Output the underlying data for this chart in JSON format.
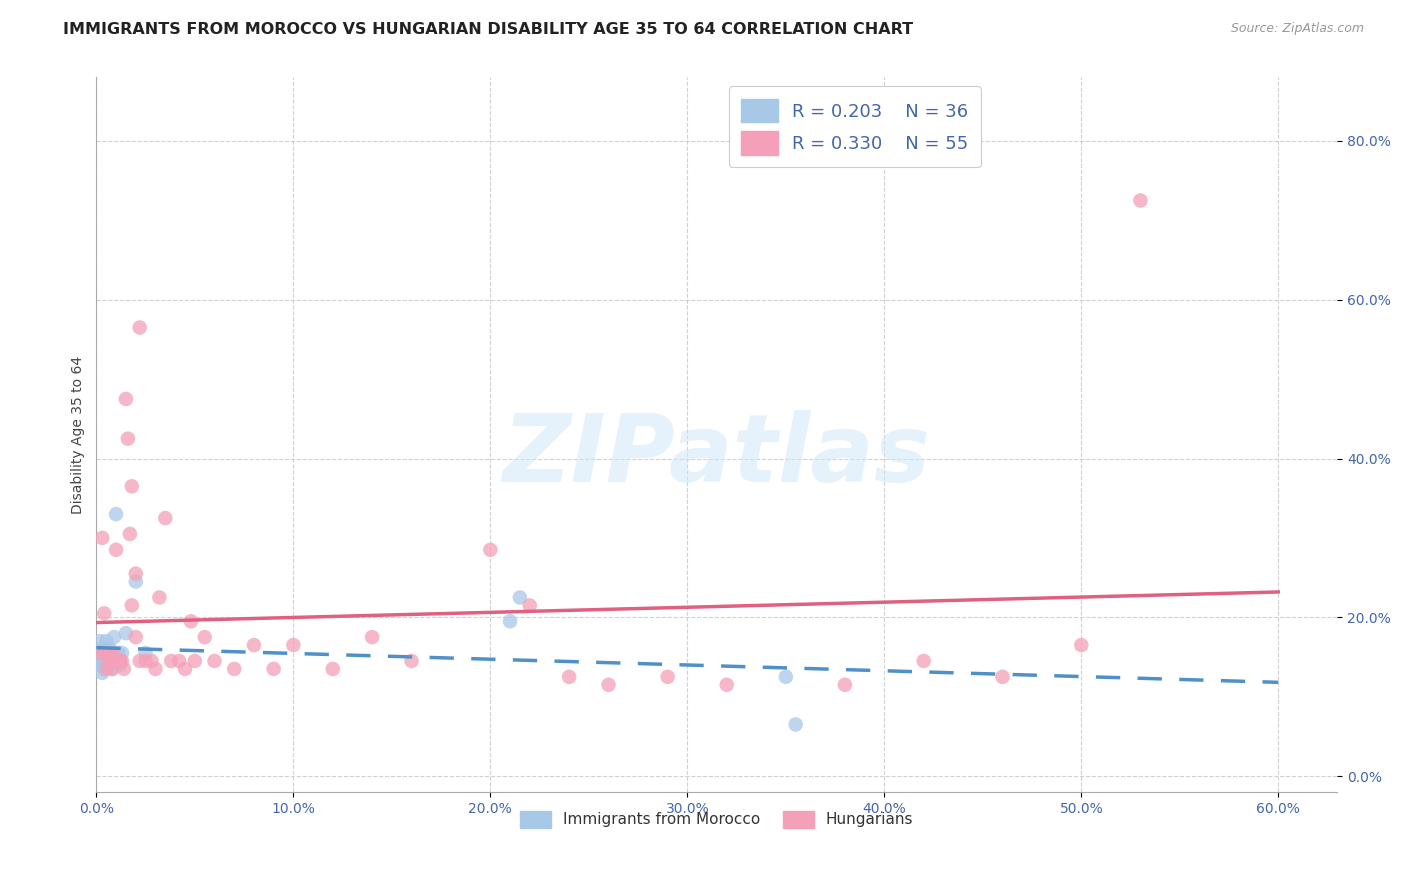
{
  "title": "IMMIGRANTS FROM MOROCCO VS HUNGARIAN DISABILITY AGE 35 TO 64 CORRELATION CHART",
  "source": "Source: ZipAtlas.com",
  "ylabel": "Disability Age 35 to 64",
  "xlim": [
    0.0,
    0.63
  ],
  "ylim": [
    -0.02,
    0.88
  ],
  "x_ticks": [
    0.0,
    0.1,
    0.2,
    0.3,
    0.4,
    0.5,
    0.6
  ],
  "y_ticks": [
    0.0,
    0.2,
    0.4,
    0.6,
    0.8
  ],
  "morocco_color": "#a8c8e8",
  "hungarian_color": "#f4a0b8",
  "morocco_line_color": "#5090c8",
  "hungarian_line_color": "#e06080",
  "background_color": "#ffffff",
  "grid_color": "#cccccc",
  "tick_color_right": "#5090c8",
  "tick_color_bottom": "#333333",
  "title_fontsize": 11.5,
  "axis_label_fontsize": 10,
  "tick_fontsize": 10,
  "legend1_R1": "R = 0.203",
  "legend1_N1": "N = 36",
  "legend1_R2": "R = 0.330",
  "legend1_N2": "N = 55",
  "legend2_label1": "Immigrants from Morocco",
  "legend2_label2": "Hungarians",
  "watermark": "ZIPatlas",
  "morocco_x": [
    0.001,
    0.001,
    0.002,
    0.002,
    0.002,
    0.003,
    0.003,
    0.003,
    0.003,
    0.004,
    0.004,
    0.004,
    0.005,
    0.005,
    0.005,
    0.006,
    0.006,
    0.007,
    0.007,
    0.008,
    0.008,
    0.009,
    0.01,
    0.01,
    0.011,
    0.012,
    0.013,
    0.015,
    0.02,
    0.025,
    0.21,
    0.215,
    0.35,
    0.355,
    0.002,
    0.003
  ],
  "morocco_y": [
    0.155,
    0.145,
    0.14,
    0.15,
    0.16,
    0.14,
    0.155,
    0.13,
    0.145,
    0.15,
    0.16,
    0.135,
    0.14,
    0.155,
    0.17,
    0.16,
    0.14,
    0.155,
    0.16,
    0.145,
    0.135,
    0.175,
    0.33,
    0.145,
    0.155,
    0.14,
    0.155,
    0.18,
    0.245,
    0.155,
    0.195,
    0.225,
    0.125,
    0.065,
    0.17,
    0.14
  ],
  "hungarian_x": [
    0.002,
    0.003,
    0.004,
    0.004,
    0.005,
    0.006,
    0.007,
    0.008,
    0.009,
    0.01,
    0.011,
    0.012,
    0.013,
    0.014,
    0.015,
    0.016,
    0.017,
    0.018,
    0.02,
    0.022,
    0.025,
    0.028,
    0.03,
    0.032,
    0.035,
    0.038,
    0.042,
    0.045,
    0.048,
    0.05,
    0.055,
    0.06,
    0.07,
    0.08,
    0.09,
    0.1,
    0.12,
    0.14,
    0.16,
    0.2,
    0.22,
    0.24,
    0.26,
    0.29,
    0.32,
    0.38,
    0.42,
    0.46,
    0.5,
    0.53,
    0.018,
    0.02,
    0.022,
    0.012,
    0.008
  ],
  "hungarian_y": [
    0.155,
    0.3,
    0.155,
    0.205,
    0.135,
    0.145,
    0.155,
    0.155,
    0.145,
    0.285,
    0.145,
    0.145,
    0.145,
    0.135,
    0.475,
    0.425,
    0.305,
    0.365,
    0.255,
    0.145,
    0.145,
    0.145,
    0.135,
    0.225,
    0.325,
    0.145,
    0.145,
    0.135,
    0.195,
    0.145,
    0.175,
    0.145,
    0.135,
    0.165,
    0.135,
    0.165,
    0.135,
    0.175,
    0.145,
    0.285,
    0.215,
    0.125,
    0.115,
    0.125,
    0.115,
    0.115,
    0.145,
    0.125,
    0.165,
    0.725,
    0.215,
    0.175,
    0.565,
    0.145,
    0.135
  ]
}
